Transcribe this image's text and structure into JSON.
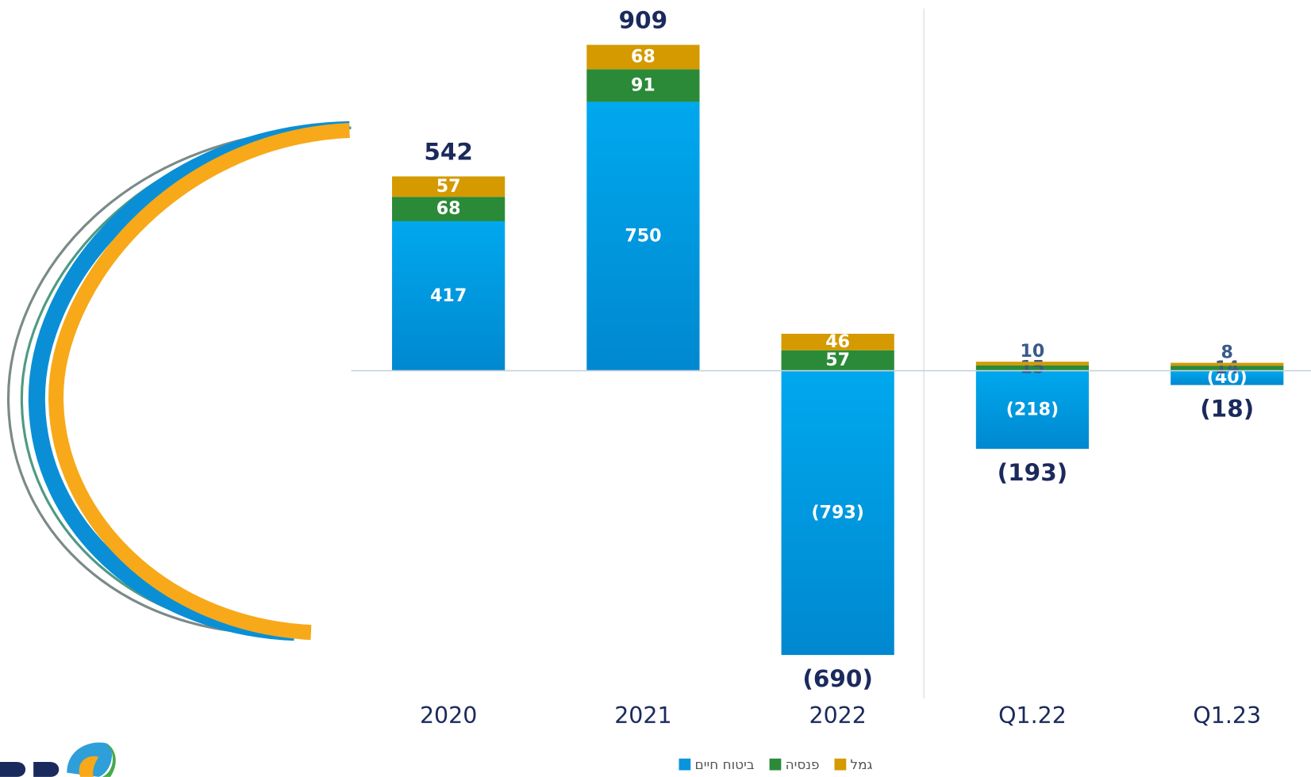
{
  "chart_data": {
    "type": "stacked_bar",
    "categories": [
      "2020",
      "2021",
      "2022",
      "Q1.22",
      "Q1.23"
    ],
    "series": [
      {
        "name": "ביטוח חיים",
        "color": "#0895dc",
        "values": [
          417,
          750,
          -793,
          -218,
          -40
        ],
        "value_labels": [
          "417",
          "750",
          "(793)",
          "(218)",
          "(40)"
        ]
      },
      {
        "name": "פנסיה",
        "color": "#2a8a38",
        "values": [
          68,
          91,
          57,
          15,
          14
        ]
      },
      {
        "name": "גמל",
        "color": "#d49a00",
        "values": [
          57,
          68,
          46,
          10,
          8
        ]
      }
    ],
    "totals": {
      "values": [
        542,
        909,
        -690,
        -193,
        -18
      ],
      "value_labels": [
        "542",
        "909",
        "(690)",
        "(193)",
        "(18)"
      ]
    },
    "ylim": [
      -800,
      950
    ]
  }
}
